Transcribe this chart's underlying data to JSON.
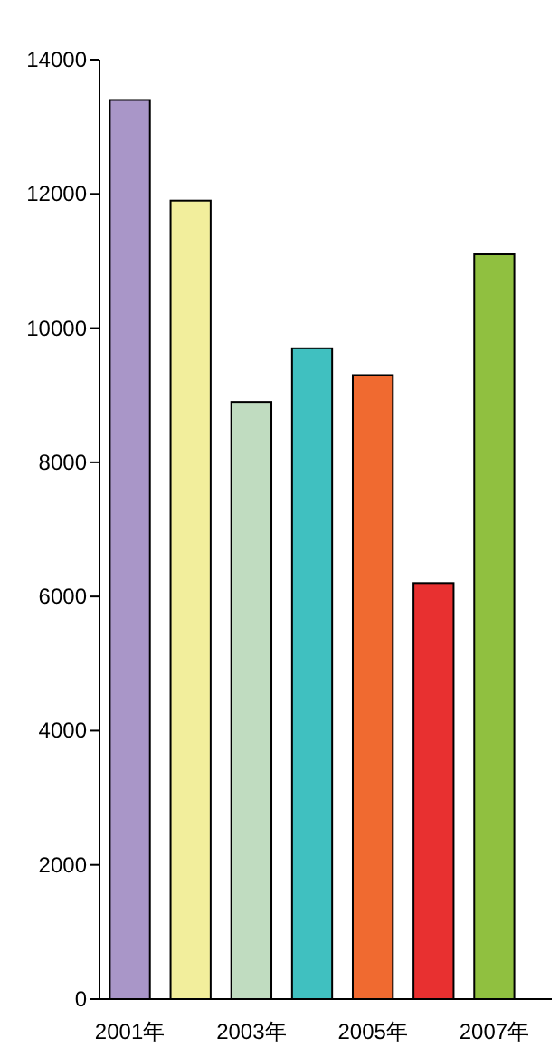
{
  "chart_data": {
    "type": "bar",
    "categories": [
      "2001年",
      null,
      "2003年",
      null,
      "2005年",
      null,
      "2007年"
    ],
    "values": [
      13400,
      11900,
      8900,
      9700,
      9300,
      6200,
      11100
    ],
    "colors": [
      "#a996c8",
      "#f2ee9c",
      "#c0dcc0",
      "#40c0c0",
      "#f06a30",
      "#e83030",
      "#90c040"
    ],
    "ylim": [
      0,
      14000
    ],
    "yticks": [
      0,
      2000,
      4000,
      6000,
      8000,
      10000,
      12000,
      14000
    ],
    "grid": false
  }
}
